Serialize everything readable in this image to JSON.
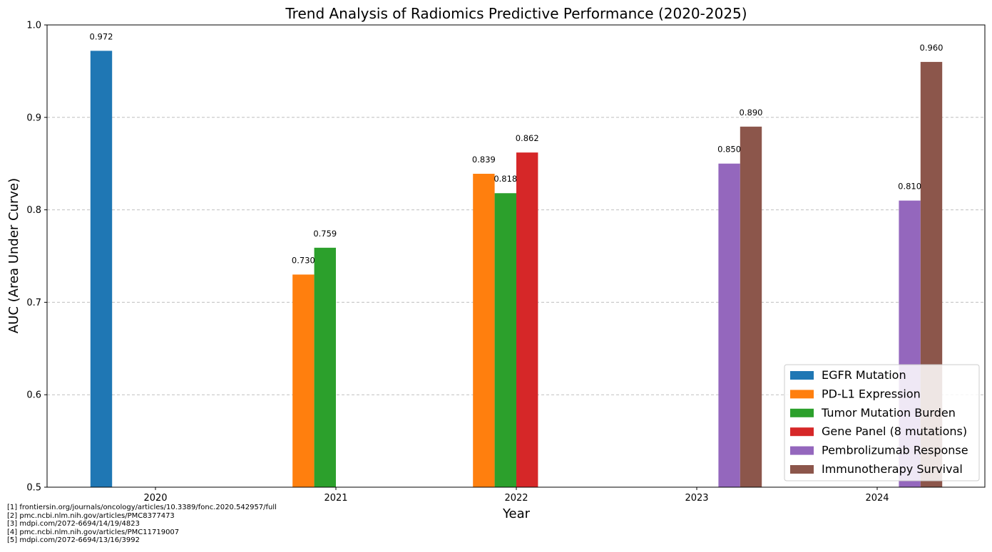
{
  "chart_data": {
    "type": "bar",
    "title": "Trend Analysis of Radiomics Predictive Performance (2020-2025)",
    "xlabel": "Year",
    "ylabel": "AUC (Area Under Curve)",
    "categories": [
      "2020",
      "2021",
      "2022",
      "2023",
      "2024"
    ],
    "ylim": [
      0.5,
      1.0
    ],
    "yticks": [
      "0.5",
      "0.6",
      "0.7",
      "0.8",
      "0.9",
      "1.0"
    ],
    "grid": "horizontal dashed",
    "legend_position": "lower-right",
    "series": [
      {
        "name": "EGFR Mutation",
        "color": "#1f77b4",
        "values": [
          0.972,
          null,
          null,
          null,
          null
        ],
        "labels": [
          "0.972",
          null,
          null,
          null,
          null
        ]
      },
      {
        "name": "PD-L1 Expression",
        "color": "#ff7f0e",
        "values": [
          null,
          0.73,
          0.839,
          null,
          null
        ],
        "labels": [
          null,
          "0.730",
          "0.839",
          null,
          null
        ]
      },
      {
        "name": "Tumor Mutation Burden",
        "color": "#2ca02c",
        "values": [
          null,
          0.759,
          0.818,
          null,
          null
        ],
        "labels": [
          null,
          "0.759",
          "0.818",
          null,
          null
        ]
      },
      {
        "name": "Gene Panel (8 mutations)",
        "color": "#d62728",
        "values": [
          null,
          null,
          0.862,
          null,
          null
        ],
        "labels": [
          null,
          null,
          "0.862",
          null,
          null
        ]
      },
      {
        "name": "Pembrolizumab Response",
        "color": "#9467bd",
        "values": [
          null,
          null,
          null,
          0.85,
          0.81
        ],
        "labels": [
          null,
          null,
          null,
          "0.850",
          "0.810"
        ]
      },
      {
        "name": "Immunotherapy Survival",
        "color": "#8c564b",
        "values": [
          null,
          null,
          null,
          0.89,
          0.96
        ],
        "labels": [
          null,
          null,
          null,
          "0.890",
          "0.960"
        ]
      }
    ]
  },
  "footnotes": [
    "[1] frontiersin.org/journals/oncology/articles/10.3389/fonc.2020.542957/full",
    "[2] pmc.ncbi.nlm.nih.gov/articles/PMC8377473",
    "[3] mdpi.com/2072-6694/14/19/4823",
    "[4] pmc.ncbi.nlm.nih.gov/articles/PMC11719007",
    "[5] mdpi.com/2072-6694/13/16/3992"
  ]
}
